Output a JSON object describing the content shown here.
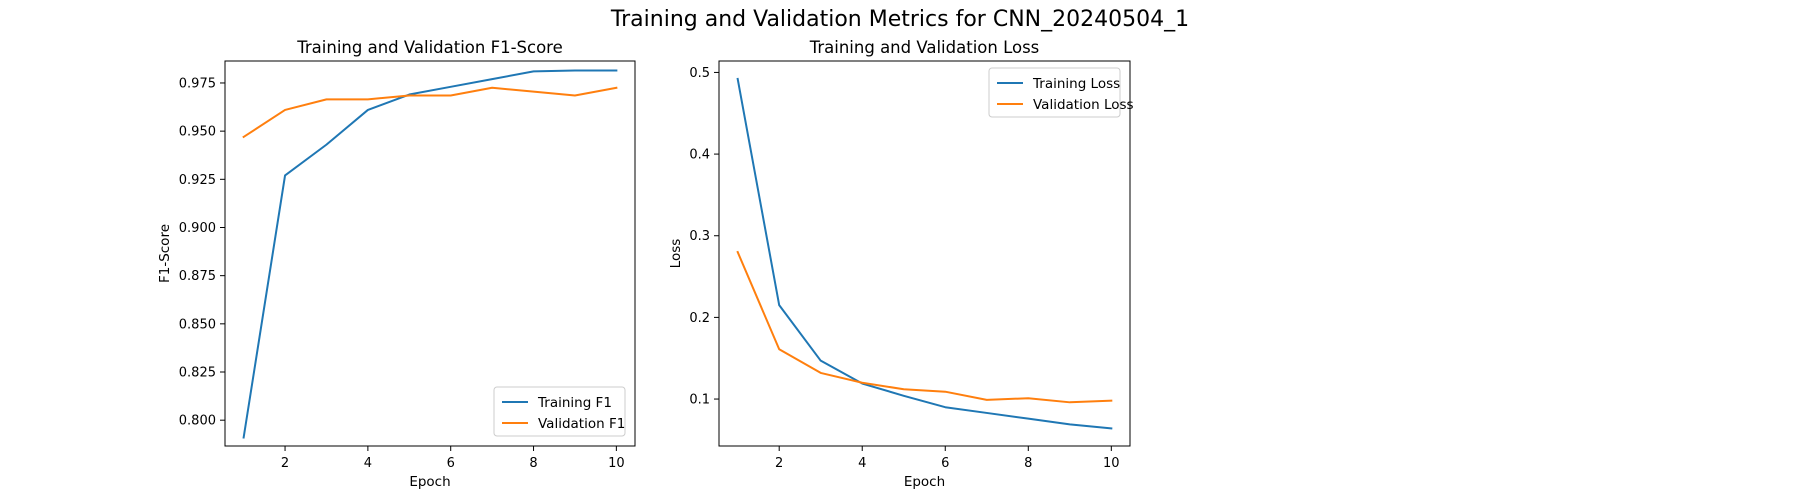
{
  "figure": {
    "suptitle": "Training and Validation Metrics for CNN_20240504_1"
  },
  "colors": {
    "training": "#1f77b4",
    "validation": "#ff7f0e"
  },
  "chart_data": [
    {
      "type": "line",
      "title": "Training and Validation F1-Score",
      "xlabel": "Epoch",
      "ylabel": "F1-Score",
      "xlim": [
        0.55,
        10.45
      ],
      "ylim": [
        0.7866,
        0.9864
      ],
      "xticks": [
        2,
        4,
        6,
        8,
        10
      ],
      "yticks": [
        0.8,
        0.825,
        0.85,
        0.875,
        0.9,
        0.925,
        0.95,
        0.975
      ],
      "xtick_labels": [
        "2",
        "4",
        "6",
        "8",
        "10"
      ],
      "ytick_labels": [
        "0.800",
        "0.825",
        "0.850",
        "0.875",
        "0.900",
        "0.925",
        "0.950",
        "0.975"
      ],
      "grid": false,
      "legend_position": "lower-right",
      "x": [
        1,
        2,
        3,
        4,
        5,
        6,
        7,
        8,
        9,
        10
      ],
      "series": [
        {
          "name": "Training F1",
          "color": "#1f77b4",
          "values": [
            0.791,
            0.927,
            0.943,
            0.961,
            0.969,
            0.973,
            0.977,
            0.981,
            0.9815,
            0.9815
          ]
        },
        {
          "name": "Validation F1",
          "color": "#ff7f0e",
          "values": [
            0.947,
            0.961,
            0.9665,
            0.9665,
            0.9685,
            0.9685,
            0.9725,
            0.9705,
            0.9685,
            0.9725
          ]
        }
      ]
    },
    {
      "type": "line",
      "title": "Training and Validation Loss",
      "xlabel": "Epoch",
      "ylabel": "Loss",
      "xlim": [
        0.55,
        10.45
      ],
      "ylim": [
        0.0425,
        0.514
      ],
      "xticks": [
        2,
        4,
        6,
        8,
        10
      ],
      "yticks": [
        0.1,
        0.2,
        0.3,
        0.4,
        0.5
      ],
      "xtick_labels": [
        "2",
        "4",
        "6",
        "8",
        "10"
      ],
      "ytick_labels": [
        "0.1",
        "0.2",
        "0.3",
        "0.4",
        "0.5"
      ],
      "grid": false,
      "legend_position": "upper-right",
      "x": [
        1,
        2,
        3,
        4,
        5,
        6,
        7,
        8,
        9,
        10
      ],
      "series": [
        {
          "name": "Training Loss",
          "color": "#1f77b4",
          "values": [
            0.492,
            0.215,
            0.147,
            0.119,
            0.104,
            0.09,
            0.083,
            0.076,
            0.069,
            0.064
          ]
        },
        {
          "name": "Validation Loss",
          "color": "#ff7f0e",
          "values": [
            0.28,
            0.161,
            0.132,
            0.12,
            0.112,
            0.109,
            0.099,
            0.101,
            0.096,
            0.098
          ]
        }
      ]
    }
  ]
}
